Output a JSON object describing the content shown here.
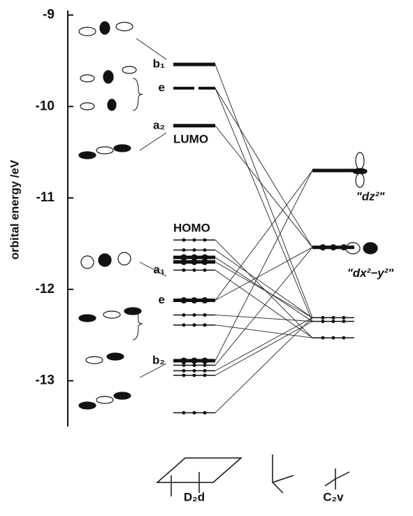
{
  "chart_data": {
    "type": "level-diagram",
    "y_label": "orbital energy /eV",
    "ylim": [
      -13.5,
      -8.95
    ],
    "yticks": [
      -9,
      -10,
      -11,
      -12,
      -13
    ],
    "groups": [
      {
        "name": "D₂d",
        "levels": [
          {
            "energy": -9.54,
            "label": "b₁",
            "style": "bold",
            "occupied": false
          },
          {
            "energy": -9.8,
            "label": "e",
            "style": "dashed",
            "occupied": false
          },
          {
            "energy": -10.21,
            "label": "a₂",
            "note": "LUMO",
            "style": "bold",
            "occupied": false
          },
          {
            "energy": -11.46,
            "note": "HOMO",
            "style": "thin",
            "occupied": true
          },
          {
            "energy": -11.57,
            "style": "thin",
            "occupied": true
          },
          {
            "energy": -11.65,
            "style": "bold",
            "occupied": true
          },
          {
            "energy": -11.7,
            "style": "bold",
            "occupied": true
          },
          {
            "energy": -11.79,
            "label": "a₁",
            "style": "thin",
            "occupied": true
          },
          {
            "energy": -12.12,
            "label": "e",
            "style": "bold",
            "occupied": true
          },
          {
            "energy": -12.28,
            "style": "thin",
            "occupied": true
          },
          {
            "energy": -12.39,
            "style": "thin",
            "occupied": true
          },
          {
            "energy": -12.78,
            "label": "b₂",
            "style": "bold",
            "occupied": true
          },
          {
            "energy": -12.83,
            "style": "thin",
            "occupied": true
          },
          {
            "energy": -12.89,
            "style": "thin",
            "occupied": true
          },
          {
            "energy": -12.94,
            "style": "thin",
            "occupied": true
          },
          {
            "energy": -13.35,
            "style": "thin",
            "occupied": true
          }
        ]
      },
      {
        "name": "C₂v",
        "levels": [
          {
            "energy": -10.7,
            "label": "\"dz²\"",
            "style": "bold",
            "occupied": false
          },
          {
            "energy": -11.54,
            "label": "\"dx²−y²\"",
            "style": "bold",
            "occupied": true
          },
          {
            "energy": -12.31,
            "style": "thin",
            "occupied": true
          },
          {
            "energy": -12.35,
            "style": "thin",
            "occupied": true
          },
          {
            "energy": -12.53,
            "style": "thin",
            "occupied": true
          }
        ]
      }
    ],
    "correlations": [
      [
        0,
        2
      ],
      [
        1,
        3
      ],
      [
        1,
        1
      ],
      [
        2,
        1
      ],
      [
        3,
        4
      ],
      [
        4,
        2
      ],
      [
        5,
        3
      ],
      [
        6,
        2
      ],
      [
        7,
        4
      ],
      [
        8,
        0
      ],
      [
        8,
        1
      ],
      [
        9,
        3
      ],
      [
        10,
        4
      ],
      [
        11,
        0
      ],
      [
        12,
        1
      ],
      [
        13,
        2
      ],
      [
        14,
        3
      ],
      [
        15,
        2
      ]
    ]
  }
}
